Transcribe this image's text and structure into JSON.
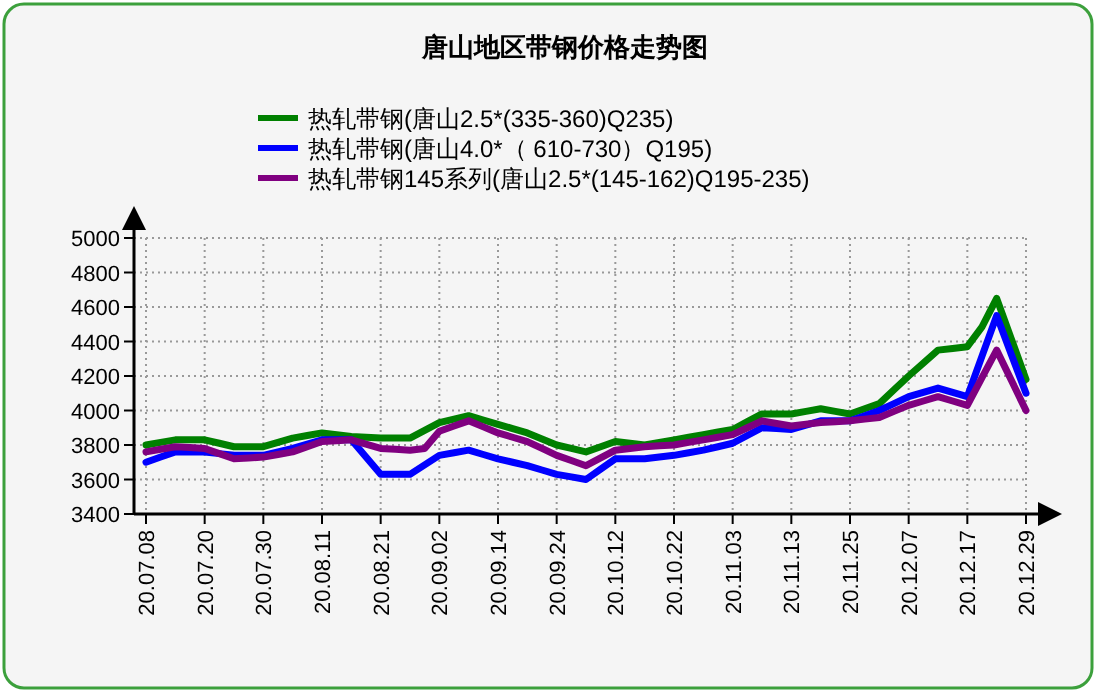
{
  "chart_data": {
    "type": "line",
    "title": "唐山地区带钢价格走势图",
    "categories": [
      "20.07.08",
      null,
      null,
      null,
      "20.07.20",
      null,
      null,
      null,
      "20.07.30",
      null,
      null,
      null,
      "20.08.11",
      null,
      null,
      null,
      "20.08.21",
      null,
      null,
      null,
      "20.09.02",
      null,
      null,
      null,
      "20.09.14",
      null,
      null,
      null,
      "20.09.24",
      null,
      null,
      null,
      "20.10.12",
      null,
      null,
      null,
      "20.10.22",
      null,
      null,
      null,
      "20.11.03",
      null,
      null,
      null,
      "20.11.13",
      null,
      null,
      null,
      "20.11.25",
      null,
      null,
      null,
      "20.12.07",
      null,
      null,
      null,
      "20.12.17",
      null,
      null,
      null,
      "20.12.29"
    ],
    "series": [
      {
        "name": "热轧带钢(唐山2.5*(335-360)Q235)",
        "color": "#008000",
        "values": [
          3800,
          3815,
          3830,
          3830,
          3830,
          3810,
          3790,
          3790,
          3790,
          3815,
          3840,
          3855,
          3870,
          3860,
          3850,
          3845,
          3840,
          3840,
          3840,
          3885,
          3930,
          3950,
          3970,
          3945,
          3920,
          3895,
          3870,
          3835,
          3800,
          3780,
          3760,
          3790,
          3820,
          3810,
          3800,
          3815,
          3830,
          3845,
          3860,
          3875,
          3890,
          3935,
          3980,
          3980,
          3980,
          3995,
          4010,
          3995,
          3980,
          4010,
          4040,
          4120,
          4200,
          4275,
          4350,
          4360,
          4370,
          4485,
          4650,
          4415,
          4180
        ]
      },
      {
        "name": "热轧带钢(唐山4.0*（ 610-730）Q195)",
        "color": "#0000ff",
        "values": [
          3700,
          3730,
          3760,
          3760,
          3760,
          3750,
          3740,
          3740,
          3740,
          3760,
          3780,
          3805,
          3830,
          3830,
          3830,
          3730,
          3630,
          3630,
          3630,
          3685,
          3740,
          3755,
          3770,
          3745,
          3720,
          3700,
          3680,
          3655,
          3630,
          3615,
          3600,
          3660,
          3720,
          3720,
          3720,
          3730,
          3740,
          3755,
          3770,
          3790,
          3810,
          3855,
          3900,
          3895,
          3890,
          3915,
          3940,
          3940,
          3940,
          3970,
          4000,
          4040,
          4080,
          4105,
          4130,
          4105,
          4080,
          4315,
          4550,
          4325,
          4100
        ]
      },
      {
        "name": "热轧带钢145系列(唐山2.5*(145-162)Q195-235)",
        "color": "#800080",
        "values": [
          3760,
          3775,
          3790,
          3785,
          3780,
          3750,
          3720,
          3725,
          3730,
          3745,
          3760,
          3790,
          3820,
          3825,
          3830,
          3805,
          3780,
          3775,
          3770,
          3780,
          3880,
          3910,
          3940,
          3905,
          3870,
          3845,
          3820,
          3780,
          3740,
          3710,
          3680,
          3725,
          3770,
          3780,
          3790,
          3795,
          3800,
          3815,
          3830,
          3845,
          3860,
          3900,
          3940,
          3925,
          3910,
          3920,
          3930,
          3935,
          3940,
          3950,
          3960,
          3995,
          4030,
          4055,
          4080,
          4055,
          4030,
          4190,
          4350,
          4175,
          4000
        ]
      }
    ],
    "ylim": [
      3400,
      5000
    ],
    "yticks": [
      3400,
      3600,
      3800,
      4000,
      4200,
      4400,
      4600,
      4800,
      5000
    ],
    "grid": true,
    "legend": "top",
    "line_style": "solid",
    "marker": "none"
  }
}
